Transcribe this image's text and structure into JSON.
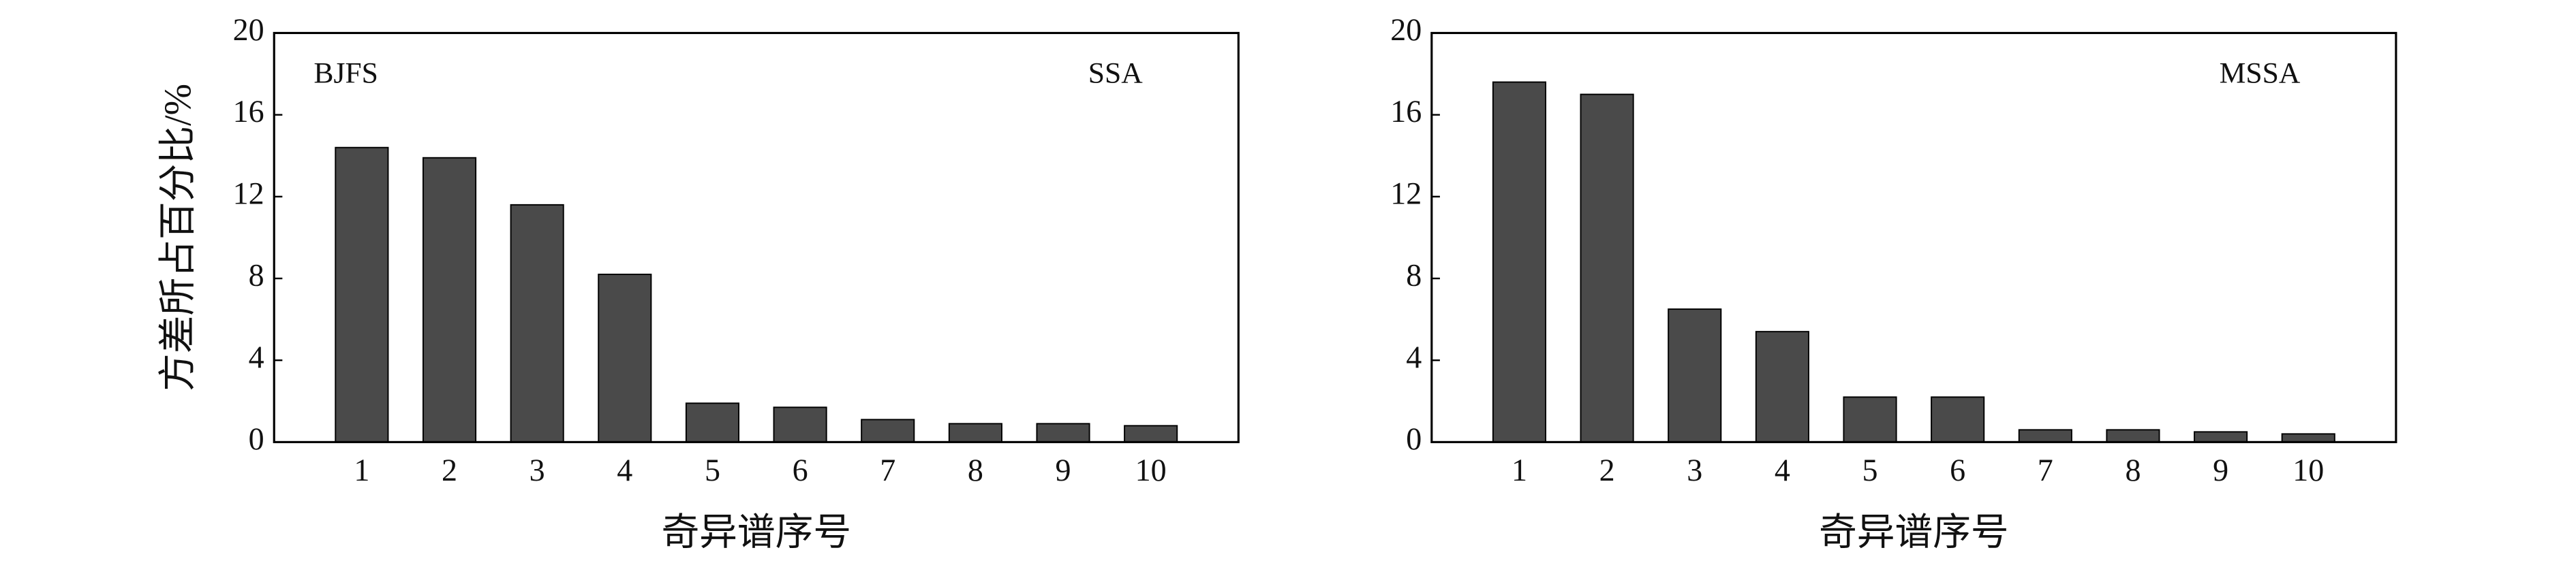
{
  "chart_data": [
    {
      "type": "bar",
      "x": [
        1,
        2,
        3,
        4,
        5,
        6,
        7,
        8,
        9,
        10
      ],
      "values": [
        14.4,
        13.9,
        11.6,
        8.2,
        1.9,
        1.7,
        1.1,
        0.9,
        0.9,
        0.8
      ],
      "color": "#4a4a4a",
      "xlim": [
        0,
        11
      ],
      "xticks": [
        1,
        2,
        3,
        4,
        5,
        6,
        7,
        8,
        9,
        10
      ],
      "ylim": [
        0,
        20
      ],
      "yticks": [
        0,
        4,
        8,
        12,
        16,
        20
      ],
      "x_label": "奇异谱序号",
      "y_label": "方差所占百分比/%",
      "annotations": [
        "BJFS",
        "SSA"
      ]
    },
    {
      "type": "bar",
      "x": [
        1,
        2,
        3,
        4,
        5,
        6,
        7,
        8,
        9,
        10
      ],
      "values": [
        17.6,
        17.0,
        6.5,
        5.4,
        2.2,
        2.2,
        0.6,
        0.6,
        0.5,
        0.4
      ],
      "color": "#4a4a4a",
      "xlim": [
        0,
        11
      ],
      "xticks": [
        1,
        2,
        3,
        4,
        5,
        6,
        7,
        8,
        9,
        10
      ],
      "ylim": [
        0,
        20
      ],
      "yticks": [
        0,
        4,
        8,
        12,
        16,
        20
      ],
      "x_label": "奇异谱序号",
      "annotations": [
        "MSSA"
      ]
    }
  ]
}
